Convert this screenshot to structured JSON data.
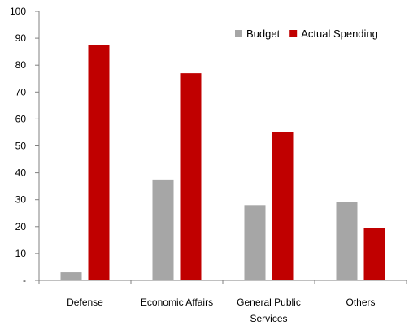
{
  "chart_data": {
    "type": "bar",
    "categories": [
      "Defense",
      "Economic Affairs",
      "General Public Services",
      "Others"
    ],
    "category_label_lines": [
      [
        "Defense"
      ],
      [
        "Economic Affairs"
      ],
      [
        "General Public",
        "Services"
      ],
      [
        "Others"
      ]
    ],
    "series": [
      {
        "name": "Budget",
        "color": "#a6a6a6",
        "values": [
          3,
          37.5,
          28,
          29
        ]
      },
      {
        "name": "Actual Spending",
        "color": "#c00000",
        "values": [
          87.5,
          77,
          55,
          19.5
        ]
      }
    ],
    "yticks": [
      "-",
      "10",
      "20",
      "30",
      "40",
      "50",
      "60",
      "70",
      "80",
      "90",
      "100"
    ],
    "ylim": [
      0,
      100
    ],
    "legend_position": "top-right",
    "grid": false
  }
}
